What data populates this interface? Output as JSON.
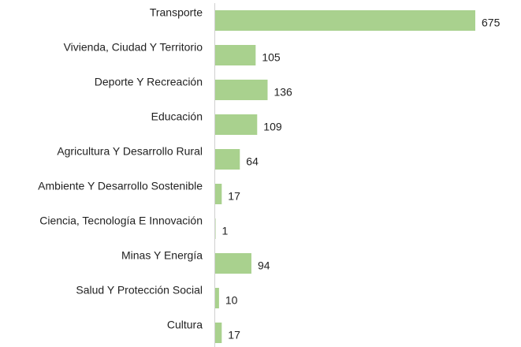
{
  "chart_data": {
    "type": "bar",
    "orientation": "horizontal",
    "categories": [
      "Transporte",
      "Vivienda, Ciudad Y Territorio",
      "Deporte Y Recreación",
      "Educación",
      "Agricultura Y Desarrollo Rural",
      "Ambiente Y Desarrollo Sostenible",
      "Ciencia, Tecnología E Innovación",
      "Minas Y Energía",
      "Salud Y Protección Social",
      "Cultura"
    ],
    "values": [
      675,
      105,
      136,
      109,
      64,
      17,
      1,
      94,
      10,
      17
    ],
    "color": "#a9d18e"
  }
}
